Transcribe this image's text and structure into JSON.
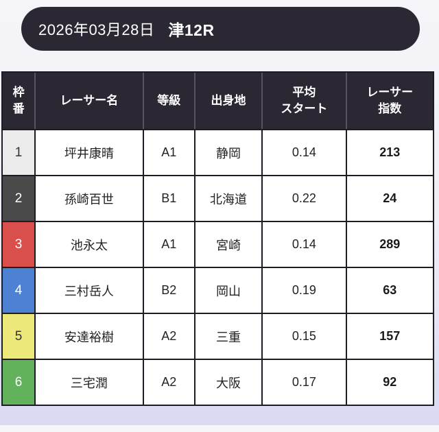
{
  "header": {
    "date": "2026年03月28日",
    "race": "津12R"
  },
  "table": {
    "columns": [
      {
        "label": "枠\n番"
      },
      {
        "label": "レーサー名"
      },
      {
        "label": "等級"
      },
      {
        "label": "出身地"
      },
      {
        "label": "平均\nスタート"
      },
      {
        "label": "レーサー\n指数"
      }
    ],
    "rows": [
      {
        "frame": "1",
        "name": "坪井康晴",
        "grade": "A1",
        "birthplace": "静岡",
        "avg_start": "0.14",
        "racer_index": "213",
        "frame_bg": "#ebebeb",
        "frame_fg": "#333333"
      },
      {
        "frame": "2",
        "name": "孫崎百世",
        "grade": "B1",
        "birthplace": "北海道",
        "avg_start": "0.22",
        "racer_index": "24",
        "frame_bg": "#4a4a4a",
        "frame_fg": "#ffffff"
      },
      {
        "frame": "3",
        "name": "池永太",
        "grade": "A1",
        "birthplace": "宮崎",
        "avg_start": "0.14",
        "racer_index": "289",
        "frame_bg": "#d94f4c",
        "frame_fg": "#ffffff"
      },
      {
        "frame": "4",
        "name": "三村岳人",
        "grade": "B2",
        "birthplace": "岡山",
        "avg_start": "0.19",
        "racer_index": "63",
        "frame_bg": "#4e81d1",
        "frame_fg": "#ffffff"
      },
      {
        "frame": "5",
        "name": "安達裕樹",
        "grade": "A2",
        "birthplace": "三重",
        "avg_start": "0.15",
        "racer_index": "157",
        "frame_bg": "#ece97a",
        "frame_fg": "#333333"
      },
      {
        "frame": "6",
        "name": "三宅潤",
        "grade": "A2",
        "birthplace": "大阪",
        "avg_start": "0.17",
        "racer_index": "92",
        "frame_bg": "#62b15b",
        "frame_fg": "#ffffff"
      }
    ]
  },
  "colors": {
    "banner_bg": "#2b2833",
    "table_header_bg": "#2b2834",
    "table_border": "#1d1b24",
    "page_bg_top": "#f5f5f9",
    "page_bg_bottom": "#d9d9f2"
  }
}
